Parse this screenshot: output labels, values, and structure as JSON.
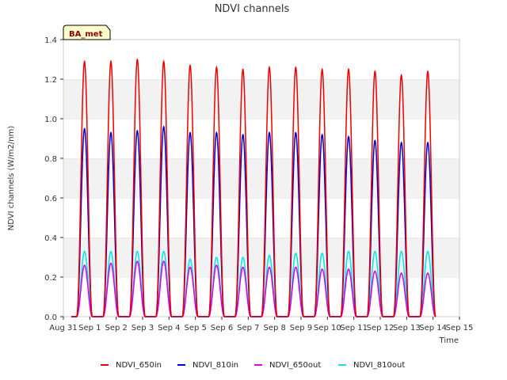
{
  "chart_data": {
    "type": "line",
    "title": "NDVI channels",
    "xlabel": "Time",
    "ylabel": "NDVI channels (W/m2/nm)",
    "site_tag": "BA_met",
    "xlim": [
      "2000-08-31",
      "2000-09-15"
    ],
    "ylim": [
      0,
      1.4
    ],
    "x_ticks": [
      "Aug 31",
      "Sep 1",
      "Sep 2",
      "Sep 3",
      "Sep 4",
      "Sep 5",
      "Sep 6",
      "Sep 7",
      "Sep 8",
      "Sep 9",
      "Sep 10",
      "Sep 11",
      "Sep 12",
      "Sep 13",
      "Sep 14",
      "Sep 15"
    ],
    "y_ticks": [
      "0.0",
      "0.2",
      "0.4",
      "0.6",
      "0.8",
      "1.0",
      "1.2",
      "1.4"
    ],
    "grid": "horizontal bands",
    "legend_position": "bottom",
    "x_peak_dates": [
      "Sep 1",
      "Sep 2",
      "Sep 3",
      "Sep 4",
      "Sep 5",
      "Sep 6",
      "Sep 7",
      "Sep 8",
      "Sep 9",
      "Sep 10",
      "Sep 11",
      "Sep 12",
      "Sep 13",
      "Sep 14"
    ],
    "series": [
      {
        "name": "NDVI_650in",
        "color": "#ee0000",
        "daily_peak": [
          1.29,
          1.29,
          1.3,
          1.29,
          1.27,
          1.26,
          1.25,
          1.26,
          1.26,
          1.25,
          1.25,
          1.24,
          1.22,
          1.24
        ]
      },
      {
        "name": "NDVI_810in",
        "color": "#0000cc",
        "daily_peak": [
          0.95,
          0.93,
          0.94,
          0.96,
          0.93,
          0.93,
          0.92,
          0.93,
          0.93,
          0.92,
          0.91,
          0.89,
          0.88,
          0.88
        ]
      },
      {
        "name": "NDVI_650out",
        "color": "#dd00dd",
        "daily_peak": [
          0.26,
          0.27,
          0.28,
          0.28,
          0.25,
          0.26,
          0.25,
          0.25,
          0.25,
          0.24,
          0.24,
          0.23,
          0.22,
          0.22
        ]
      },
      {
        "name": "NDVI_810out",
        "color": "#00e5e5",
        "daily_peak": [
          0.33,
          0.33,
          0.33,
          0.33,
          0.29,
          0.3,
          0.3,
          0.31,
          0.32,
          0.32,
          0.33,
          0.33,
          0.33,
          0.33
        ]
      }
    ]
  }
}
